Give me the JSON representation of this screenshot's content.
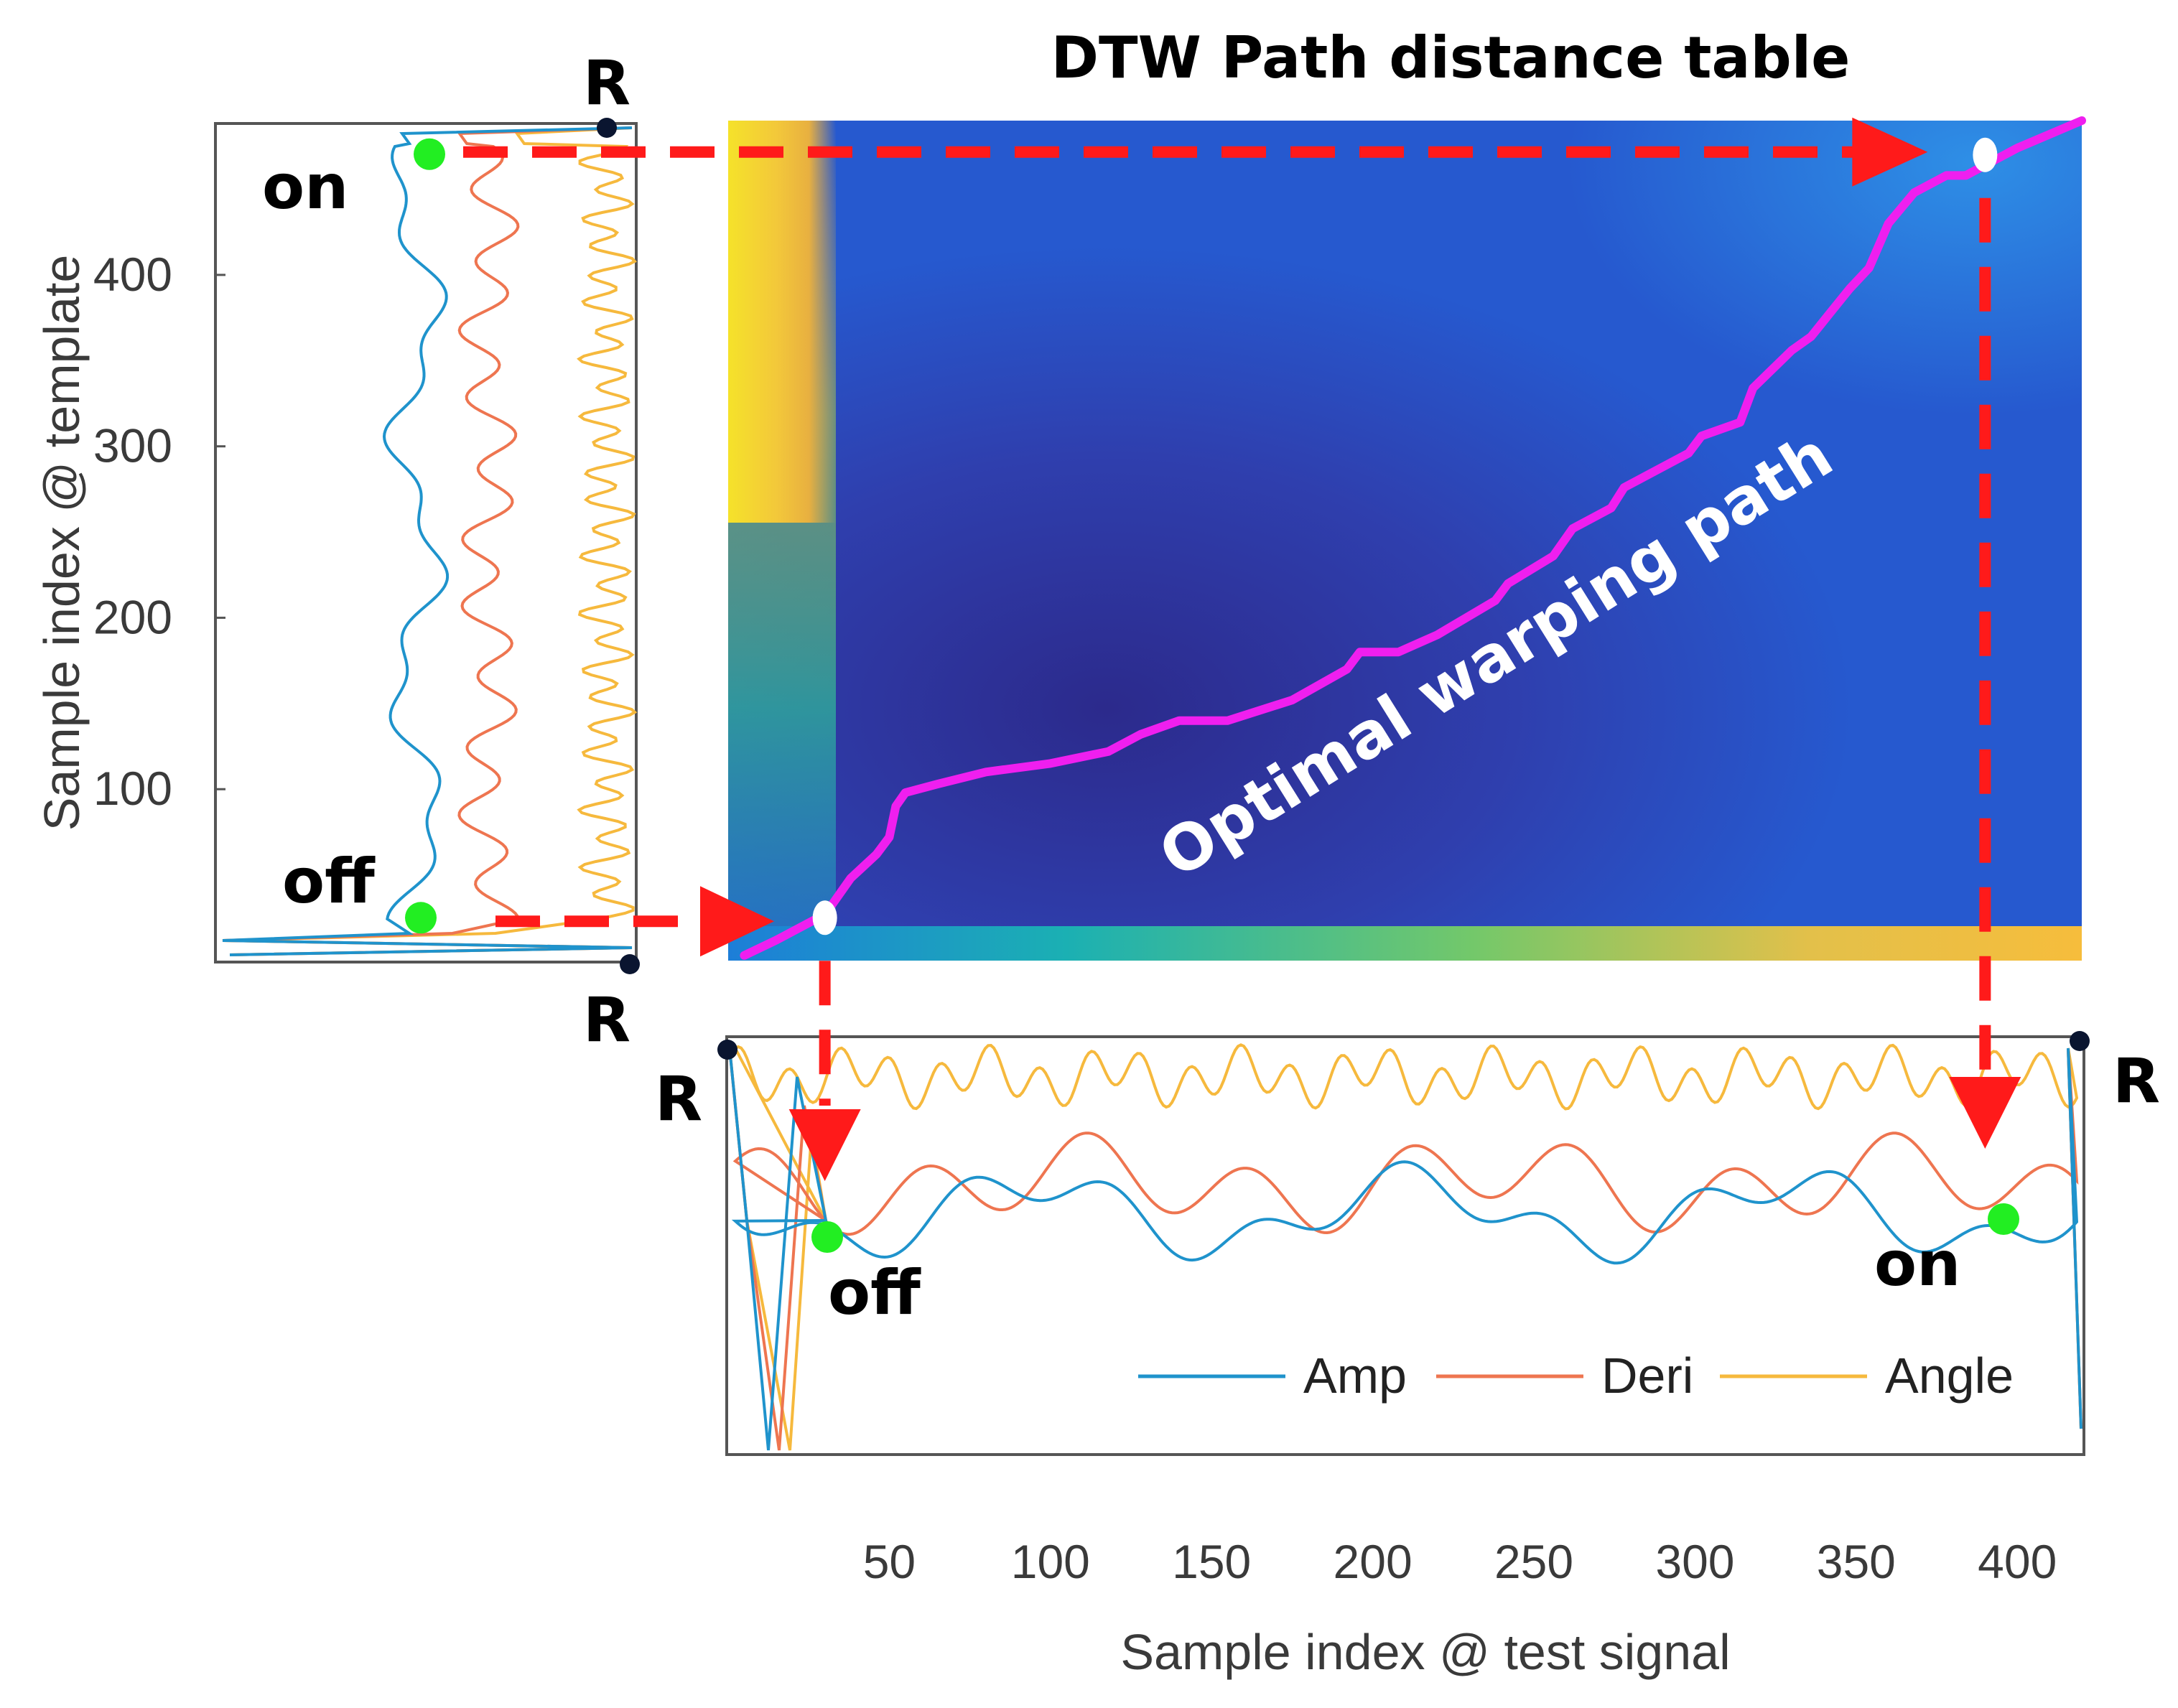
{
  "chart_data": {
    "type": "heatmap",
    "title": "DTW Path distance table",
    "xlabel": "Sample index @ test signal",
    "ylabel": "Sample index @ template",
    "xlim": [
      0,
      420
    ],
    "ylim": [
      0,
      490
    ],
    "x_ticks": [
      50,
      100,
      150,
      200,
      250,
      300,
      350,
      400
    ],
    "y_ticks": [
      100,
      200,
      300,
      400
    ],
    "path_label": "Optimal warping path",
    "warping_path": [
      [
        5,
        3
      ],
      [
        15,
        12
      ],
      [
        28,
        25
      ],
      [
        32,
        32
      ],
      [
        38,
        48
      ],
      [
        42,
        55
      ],
      [
        46,
        62
      ],
      [
        50,
        72
      ],
      [
        52,
        90
      ],
      [
        55,
        98
      ],
      [
        65,
        103
      ],
      [
        80,
        110
      ],
      [
        100,
        115
      ],
      [
        118,
        122
      ],
      [
        128,
        132
      ],
      [
        140,
        140
      ],
      [
        155,
        140
      ],
      [
        175,
        152
      ],
      [
        192,
        170
      ],
      [
        196,
        180
      ],
      [
        208,
        180
      ],
      [
        220,
        190
      ],
      [
        238,
        210
      ],
      [
        242,
        220
      ],
      [
        256,
        236
      ],
      [
        262,
        252
      ],
      [
        274,
        264
      ],
      [
        278,
        276
      ],
      [
        298,
        296
      ],
      [
        302,
        306
      ],
      [
        314,
        314
      ],
      [
        318,
        334
      ],
      [
        330,
        356
      ],
      [
        336,
        364
      ],
      [
        342,
        378
      ],
      [
        348,
        392
      ],
      [
        354,
        404
      ],
      [
        360,
        430
      ],
      [
        368,
        448
      ],
      [
        378,
        458
      ],
      [
        384,
        458
      ],
      [
        392,
        466
      ],
      [
        400,
        474
      ],
      [
        420,
        490
      ]
    ],
    "onset_offset_points": [
      {
        "x": 30,
        "y": 25
      },
      {
        "x": 390,
        "y": 470
      }
    ],
    "markers": {
      "on": "on",
      "off": "off",
      "r": "R"
    },
    "series": [
      {
        "name": "Amp",
        "color": "#1f93cc"
      },
      {
        "name": "Deri",
        "color": "#ee7550"
      },
      {
        "name": "Angle",
        "color": "#f6b93d"
      }
    ],
    "colors": {
      "path": "#ef1fef",
      "arrows": "#ff1a1a",
      "onoff_dots": "#22ee22",
      "r_dots": "#0a1530"
    }
  }
}
